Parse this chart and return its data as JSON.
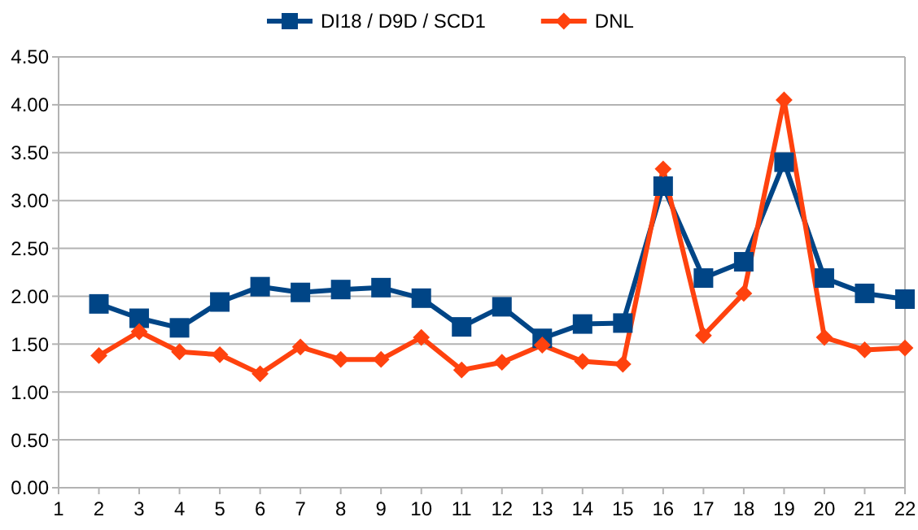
{
  "chart_data": {
    "type": "line",
    "x": [
      2,
      3,
      4,
      5,
      6,
      7,
      8,
      9,
      10,
      11,
      12,
      13,
      14,
      15,
      16,
      17,
      18,
      19,
      20,
      21,
      22
    ],
    "series": [
      {
        "name": "DI18 / D9D / SCD1",
        "color": "#004586",
        "marker": "square",
        "values": [
          1.92,
          1.77,
          1.67,
          1.94,
          2.1,
          2.04,
          2.07,
          2.09,
          1.98,
          1.68,
          1.89,
          1.56,
          1.71,
          1.72,
          3.15,
          2.19,
          2.36,
          3.4,
          2.19,
          2.03,
          1.97
        ]
      },
      {
        "name": "DNL",
        "color": "#ff420e",
        "marker": "diamond",
        "values": [
          1.38,
          1.63,
          1.42,
          1.39,
          1.19,
          1.47,
          1.34,
          1.34,
          1.57,
          1.23,
          1.31,
          1.49,
          1.32,
          1.29,
          3.33,
          1.59,
          2.03,
          4.05,
          1.57,
          1.44,
          1.46
        ]
      }
    ],
    "xlim": [
      1,
      22
    ],
    "xticks": [
      1,
      2,
      3,
      4,
      5,
      6,
      7,
      8,
      9,
      10,
      11,
      12,
      13,
      14,
      15,
      16,
      17,
      18,
      19,
      20,
      21,
      22
    ],
    "ylim": [
      0,
      4.5
    ],
    "yticks": [
      {
        "value": 0,
        "label": "0.00"
      },
      {
        "value": 0.5,
        "label": "0.50"
      },
      {
        "value": 1,
        "label": "1.00"
      },
      {
        "value": 1.5,
        "label": "1.50"
      },
      {
        "value": 2,
        "label": "2.00"
      },
      {
        "value": 2.5,
        "label": "2.50"
      },
      {
        "value": 3,
        "label": "3.00"
      },
      {
        "value": 3.5,
        "label": "3.50"
      },
      {
        "value": 4,
        "label": "4.00"
      },
      {
        "value": 4.5,
        "label": "4.50"
      }
    ],
    "grid": "y",
    "legend": "top",
    "line_style": "solid"
  }
}
